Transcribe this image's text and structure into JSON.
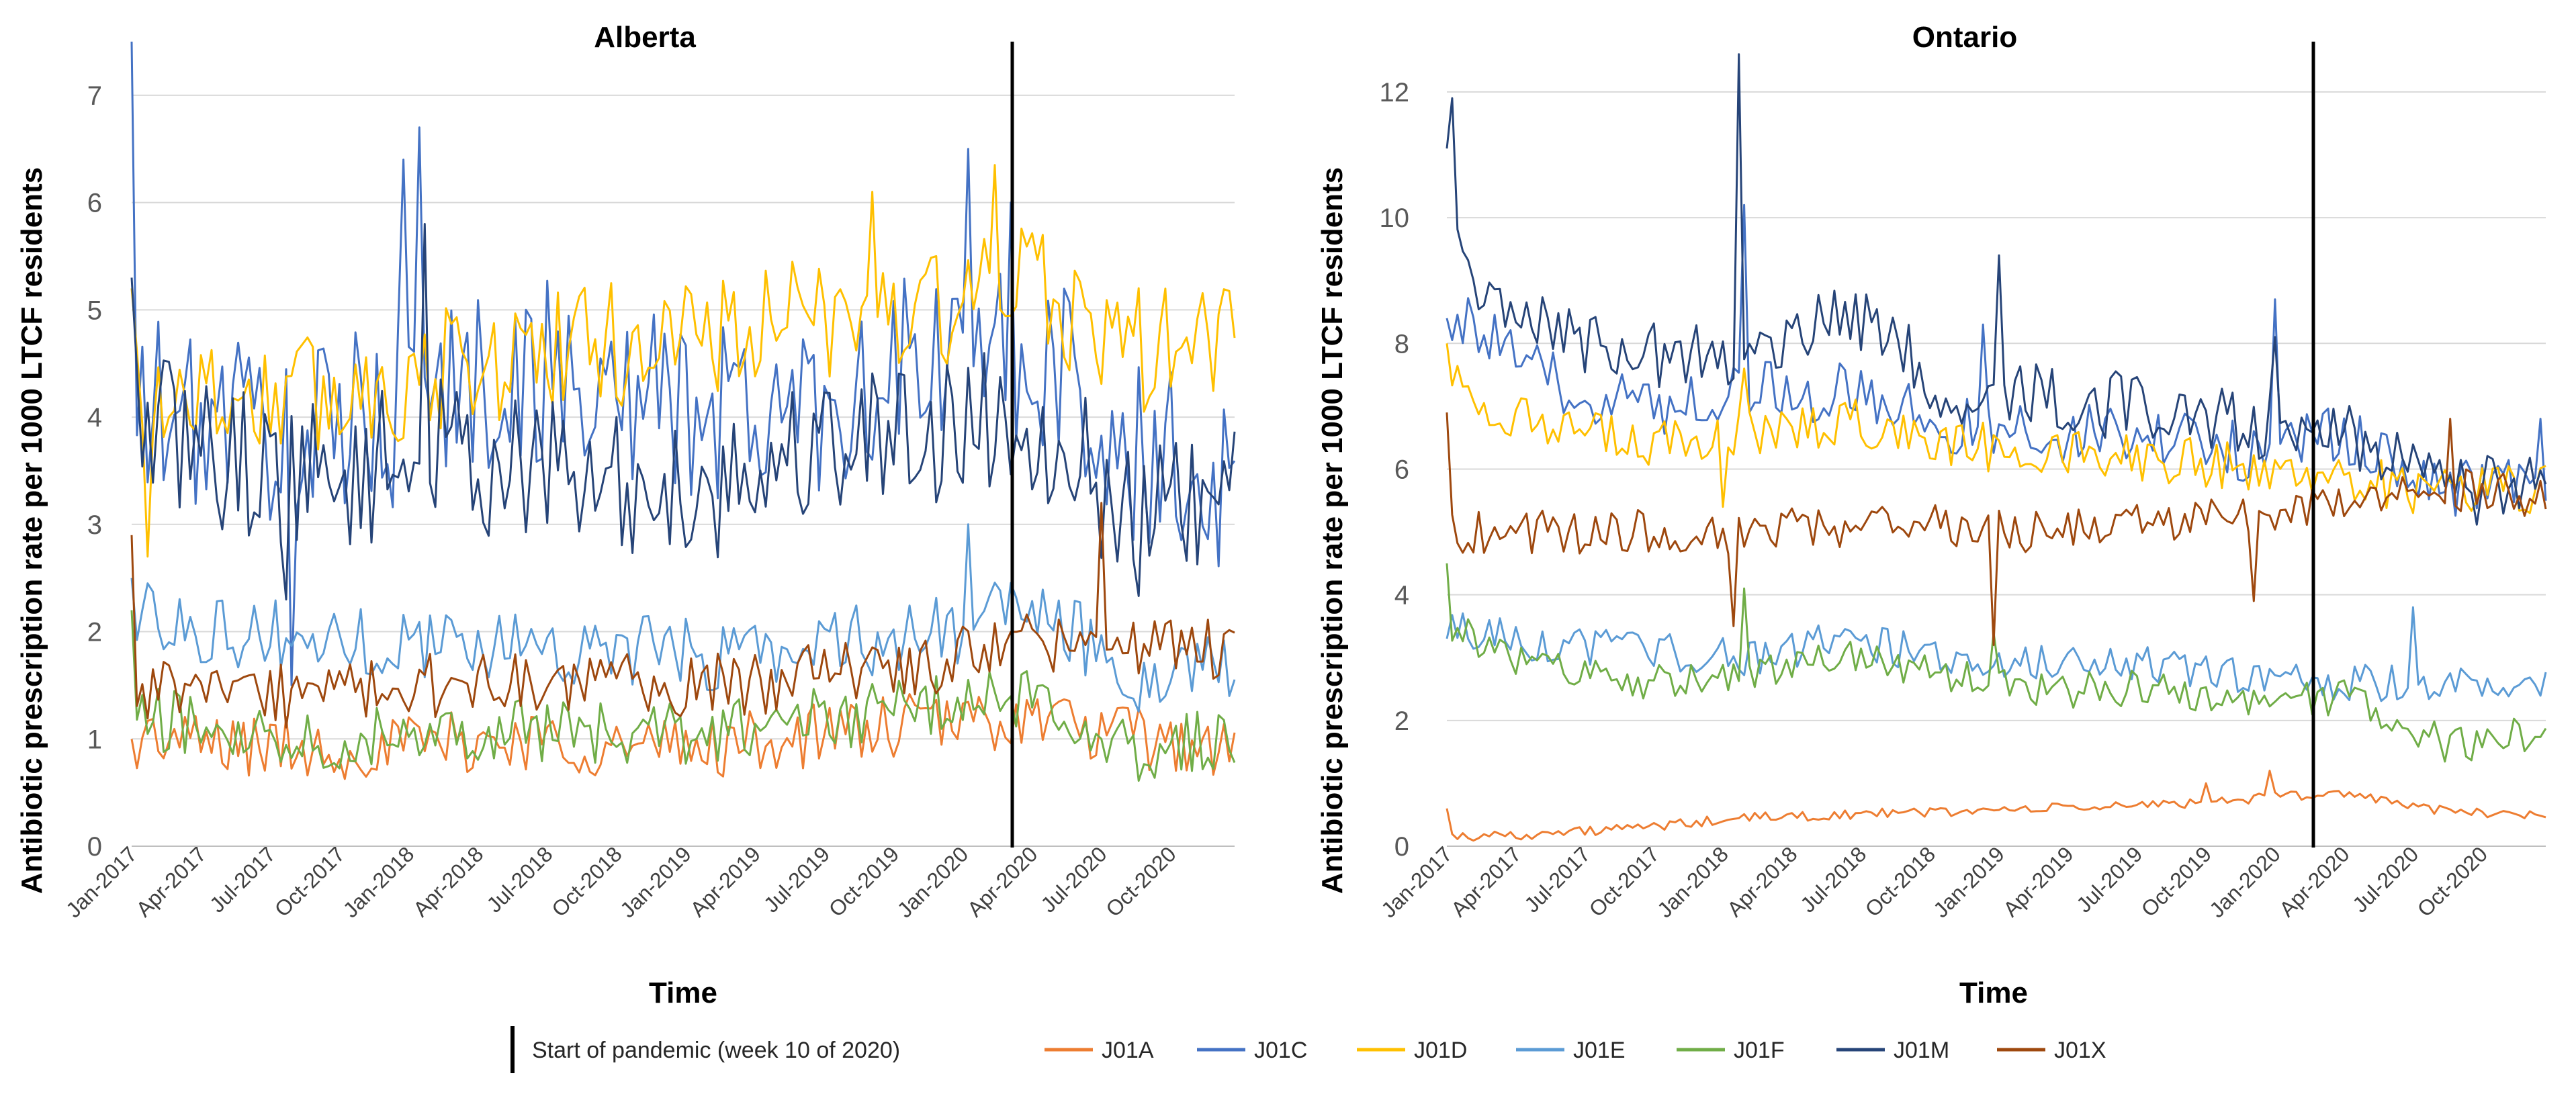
{
  "chart_data": [
    {
      "type": "line",
      "title": "Alberta",
      "xlabel": "Time",
      "ylabel": "Antibiotic prescription rate per 1000 LTCF residents",
      "ylim": [
        0,
        7.5
      ],
      "yticks": [
        "0",
        "1",
        "2",
        "3",
        "4",
        "5",
        "6",
        "7"
      ],
      "x_tick_labels": [
        "Jan-2017",
        "Apr-2017",
        "Jul-2017",
        "Oct-2017",
        "Jan-2018",
        "Apr-2018",
        "Jul-2018",
        "Oct-2018",
        "Jan-2019",
        "Apr-2019",
        "Jul-2019",
        "Oct-2019",
        "Jan-2020",
        "Apr-2020",
        "Jul-2020",
        "Oct-2020"
      ],
      "x_unit": "week",
      "x_range": [
        1,
        208
      ],
      "pandemic_start_week": 167,
      "grid": true,
      "series": [
        {
          "name": "J01A",
          "mean": [
            1.0,
            0.95,
            0.9,
            0.95,
            1.0,
            0.9,
            0.95,
            1.05,
            1.15,
            1.2,
            1.0,
            0.9
          ],
          "noise": 0.3,
          "start": 1.0,
          "peaks": []
        },
        {
          "name": "J01C",
          "mean": [
            4.0,
            4.0,
            3.8,
            4.2,
            4.4,
            4.2,
            4.0,
            4.2,
            4.5,
            4.6,
            3.6,
            3.4
          ],
          "noise": 0.9,
          "start": 7.5,
          "peaks": [
            [
              55,
              6.7
            ],
            [
              52,
              6.4
            ],
            [
              158,
              6.5
            ],
            [
              166,
              6.0
            ],
            [
              31,
              1.5
            ]
          ]
        },
        {
          "name": "J01D",
          "mean": [
            4.3,
            4.2,
            4.2,
            4.4,
            4.6,
            4.7,
            4.8,
            4.9,
            5.0,
            5.2,
            4.6,
            4.8
          ],
          "noise": 0.6,
          "start": 5.2,
          "peaks": [
            [
              163,
              6.35
            ],
            [
              140,
              6.1
            ],
            [
              4,
              2.7
            ]
          ]
        },
        {
          "name": "J01E",
          "mean": [
            2.2,
            2.0,
            1.9,
            1.9,
            1.9,
            1.8,
            1.8,
            1.9,
            2.0,
            2.2,
            1.6,
            1.7
          ],
          "noise": 0.35,
          "start": 2.5,
          "peaks": [
            [
              158,
              3.0
            ]
          ]
        },
        {
          "name": "J01F",
          "mean": [
            1.2,
            1.1,
            1.0,
            1.1,
            1.1,
            1.0,
            1.1,
            1.2,
            1.3,
            1.4,
            0.9,
            1.0
          ],
          "noise": 0.3,
          "start": 2.2,
          "peaks": []
        },
        {
          "name": "J01M",
          "mean": [
            4.0,
            3.6,
            3.4,
            3.7,
            3.5,
            3.3,
            3.4,
            3.8,
            3.9,
            4.0,
            3.0,
            3.2
          ],
          "noise": 0.7,
          "start": 5.3,
          "peaks": [
            [
              56,
              5.8
            ],
            [
              30,
              2.3
            ]
          ]
        },
        {
          "name": "J01X",
          "mean": [
            1.5,
            1.4,
            1.4,
            1.5,
            1.5,
            1.5,
            1.5,
            1.6,
            1.7,
            1.9,
            1.9,
            1.8
          ],
          "noise": 0.3,
          "start": 2.9,
          "peaks": [
            [
              183,
              3.2
            ]
          ]
        }
      ]
    },
    {
      "type": "line",
      "title": "Ontario",
      "xlabel": "Time",
      "ylabel": "Antibiotic prescription rate per 1000 LTCF residents",
      "ylim": [
        0,
        12.8
      ],
      "yticks": [
        "0",
        "2",
        "4",
        "6",
        "8",
        "10",
        "12"
      ],
      "x_tick_labels": [
        "Jan-2017",
        "Apr-2017",
        "Jul-2017",
        "Oct-2017",
        "Jan-2018",
        "Apr-2018",
        "Jul-2018",
        "Oct-2018",
        "Jan-2019",
        "Apr-2019",
        "Jul-2019",
        "Oct-2019",
        "Jan-2020",
        "Apr-2020",
        "Jul-2020",
        "Oct-2020"
      ],
      "x_unit": "week",
      "x_range": [
        1,
        208
      ],
      "pandemic_start_week": 167,
      "grid": true,
      "series": [
        {
          "name": "J01A",
          "mean": [
            0.15,
            0.2,
            0.3,
            0.45,
            0.5,
            0.55,
            0.6,
            0.65,
            0.75,
            0.85,
            0.55,
            0.5
          ],
          "noise": 0.08,
          "start": 0.6,
          "peaks": [
            [
              156,
              1.2
            ],
            [
              144,
              1.0
            ]
          ]
        },
        {
          "name": "J01C",
          "mean": [
            8.5,
            7.4,
            7.0,
            7.3,
            7.2,
            6.7,
            6.6,
            6.5,
            6.3,
            6.5,
            5.7,
            5.9
          ],
          "noise": 0.5,
          "start": 8.4,
          "peaks": [
            [
              57,
              10.2
            ],
            [
              102,
              8.3
            ],
            [
              157,
              8.7
            ],
            [
              207,
              6.8
            ]
          ]
        },
        {
          "name": "J01D",
          "mean": [
            7.4,
            6.6,
            6.4,
            6.5,
            6.8,
            6.4,
            6.3,
            6.2,
            6.0,
            5.9,
            5.6,
            5.7
          ],
          "noise": 0.4,
          "start": 8.0,
          "peaks": [
            [
              57,
              7.6
            ],
            [
              53,
              5.4
            ]
          ]
        },
        {
          "name": "J01E",
          "mean": [
            3.5,
            3.2,
            3.1,
            3.0,
            3.3,
            3.0,
            2.9,
            2.9,
            2.7,
            2.6,
            2.6,
            2.6
          ],
          "noise": 0.3,
          "start": 3.3,
          "peaks": [
            [
              183,
              3.8
            ]
          ]
        },
        {
          "name": "J01F",
          "mean": [
            3.5,
            2.8,
            2.6,
            2.7,
            3.0,
            2.7,
            2.5,
            2.5,
            2.3,
            2.4,
            1.6,
            1.8
          ],
          "noise": 0.3,
          "start": 4.5,
          "peaks": [
            [
              57,
              4.1
            ],
            [
              104,
              3.4
            ]
          ]
        },
        {
          "name": "J01M",
          "mean": [
            9.5,
            8.2,
            7.8,
            7.8,
            8.5,
            7.3,
            7.1,
            7.0,
            6.7,
            6.5,
            5.6,
            5.8
          ],
          "noise": 0.55,
          "start": 11.1,
          "peaks": [
            [
              2,
              11.9
            ],
            [
              56,
              12.6
            ],
            [
              105,
              9.4
            ],
            [
              157,
              8.1
            ]
          ]
        },
        {
          "name": "J01X",
          "mean": [
            5.0,
            5.0,
            5.0,
            5.0,
            5.1,
            5.1,
            5.0,
            5.1,
            5.2,
            5.4,
            5.7,
            5.5
          ],
          "noise": 0.35,
          "start": 6.9,
          "peaks": [
            [
              55,
              3.5
            ],
            [
              104,
              3.2
            ],
            [
              153,
              3.9
            ],
            [
              190,
              6.8
            ]
          ]
        }
      ]
    }
  ],
  "legend": {
    "pandemic_label": "Start of pandemic (week 10 of 2020)",
    "items": [
      {
        "name": "J01A",
        "color": "#ed7d31"
      },
      {
        "name": "J01C",
        "color": "#4472c4"
      },
      {
        "name": "J01D",
        "color": "#ffc000"
      },
      {
        "name": "J01E",
        "color": "#5b9bd5"
      },
      {
        "name": "J01F",
        "color": "#70ad47"
      },
      {
        "name": "J01M",
        "color": "#264478"
      },
      {
        "name": "J01X",
        "color": "#9e480e"
      }
    ]
  }
}
